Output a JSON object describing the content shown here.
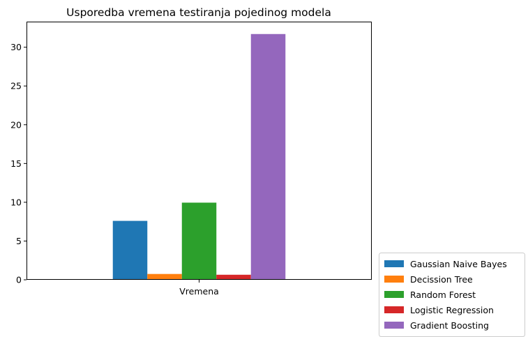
{
  "chart_data": {
    "type": "bar",
    "title": "Usporedba vremena testiranja pojedinog modela",
    "xlabel": "",
    "ylabel": "",
    "categories": [
      "Vremena"
    ],
    "series": [
      {
        "name": "Gaussian Naive Bayes",
        "values": [
          7.6
        ],
        "color": "#1f77b4"
      },
      {
        "name": "Decission Tree",
        "values": [
          0.75
        ],
        "color": "#ff7f0e"
      },
      {
        "name": "Random Forest",
        "values": [
          9.95
        ],
        "color": "#2ca02c"
      },
      {
        "name": "Logistic Regression",
        "values": [
          0.65
        ],
        "color": "#d62728"
      },
      {
        "name": "Gradient Boosting",
        "values": [
          31.7
        ],
        "color": "#9467bd"
      }
    ],
    "ylim": [
      0,
      33.3
    ],
    "yticks": [
      0,
      5,
      10,
      15,
      20,
      25,
      30
    ],
    "grid": false,
    "legend_position": "outside-lower-right"
  }
}
